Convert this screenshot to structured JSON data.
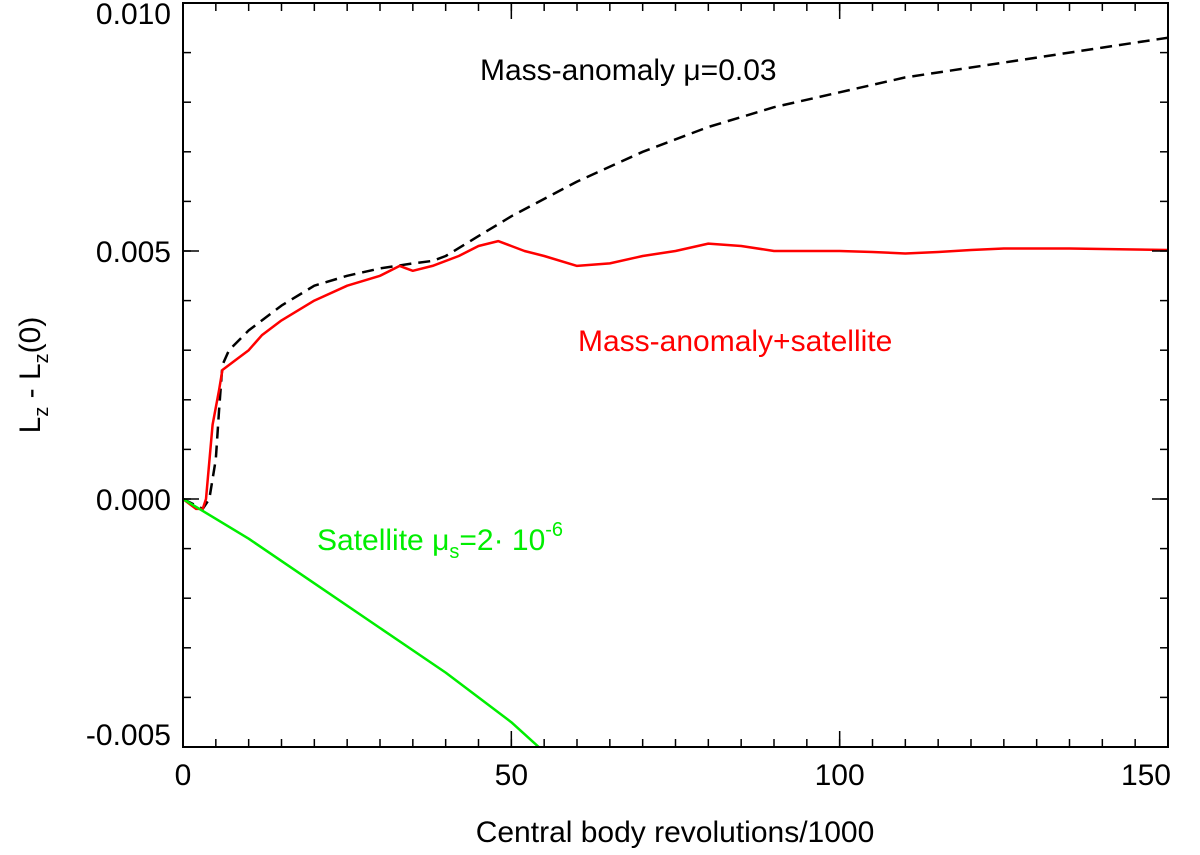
{
  "chart_data": {
    "type": "line",
    "title": "",
    "xlabel": "Central body revolutions/1000",
    "ylabel": {
      "main1": "L",
      "sub1": "z",
      "mid": " - L",
      "sub2": "z",
      "end": "(0)"
    },
    "xlim": [
      0,
      150
    ],
    "ylim": [
      -0.005,
      0.01
    ],
    "x_ticks": [
      {
        "value": 0,
        "label": "0"
      },
      {
        "value": 50,
        "label": "50"
      },
      {
        "value": 100,
        "label": "100"
      },
      {
        "value": 150,
        "label": "150"
      }
    ],
    "y_ticks": [
      {
        "value": -0.005,
        "label": "-0.005"
      },
      {
        "value": 0.0,
        "label": "0.000"
      },
      {
        "value": 0.005,
        "label": "0.005"
      },
      {
        "value": 0.01,
        "label": "0.010"
      }
    ],
    "x_minor_step": 5,
    "y_minor_step": 0.001,
    "series": [
      {
        "name": "Mass-anomaly",
        "color": "#000000",
        "style": "dashed",
        "x": [
          0,
          3,
          4,
          5,
          5.5,
          6,
          7,
          10,
          15,
          20,
          25,
          30,
          35,
          38,
          40,
          45,
          50,
          60,
          70,
          80,
          90,
          100,
          110,
          120,
          130,
          140,
          150
        ],
        "y": [
          0.0,
          -0.0002,
          0.0,
          0.0008,
          0.0018,
          0.0027,
          0.003,
          0.0034,
          0.0039,
          0.0043,
          0.0045,
          0.00465,
          0.00475,
          0.0048,
          0.0049,
          0.0053,
          0.0057,
          0.0064,
          0.007,
          0.0075,
          0.0079,
          0.0082,
          0.0085,
          0.0087,
          0.0089,
          0.0091,
          0.0093
        ]
      },
      {
        "name": "Mass-anomaly+satellite",
        "color": "#ff0000",
        "style": "solid",
        "x": [
          0,
          2,
          3,
          3.5,
          4.5,
          5.5,
          6,
          8,
          10,
          12,
          15,
          20,
          25,
          30,
          33,
          34,
          35,
          38,
          42,
          45,
          48,
          50,
          52,
          55,
          60,
          65,
          70,
          75,
          80,
          85,
          90,
          95,
          100,
          105,
          110,
          115,
          120,
          125,
          130,
          135,
          140,
          145,
          150
        ],
        "y": [
          0.0,
          -0.0002,
          -0.0002,
          0.0,
          0.0015,
          0.0022,
          0.0026,
          0.0028,
          0.003,
          0.0033,
          0.0036,
          0.004,
          0.0043,
          0.0045,
          0.0047,
          0.00465,
          0.0046,
          0.0047,
          0.0049,
          0.0051,
          0.0052,
          0.0051,
          0.005,
          0.0049,
          0.0047,
          0.00475,
          0.0049,
          0.005,
          0.00515,
          0.0051,
          0.005,
          0.005,
          0.005,
          0.00498,
          0.00495,
          0.00498,
          0.00502,
          0.00505,
          0.00505,
          0.00505,
          0.00504,
          0.00503,
          0.00502
        ]
      },
      {
        "name": "Satellite",
        "color": "#00ee00",
        "style": "solid",
        "x": [
          0,
          10,
          20,
          30,
          40,
          50,
          55
        ],
        "y": [
          0.0,
          -0.0008,
          -0.0017,
          -0.0026,
          -0.0035,
          -0.0045,
          -0.0051
        ]
      }
    ],
    "annotations": {
      "mass_anomaly": {
        "text": "Mass-anomaly μ=0.03",
        "color": "#000000"
      },
      "combined": {
        "text": "Mass-anomaly+satellite",
        "color": "#ff0000"
      },
      "satellite": {
        "main": "Satellite μ",
        "sub": "s",
        "mid": "=2· 10",
        "sup": "-6",
        "color": "#00ee00"
      }
    }
  }
}
